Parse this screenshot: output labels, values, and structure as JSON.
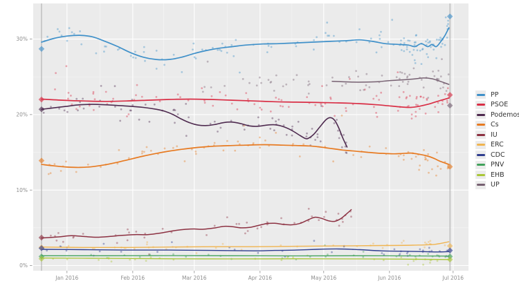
{
  "figure": {
    "background": "#ffffff",
    "panel_background": "#ebebeb",
    "grid_major_color": "#ffffff",
    "grid_minor_color": "rgba(255,255,255,0.55)",
    "axis_text_color": "#8e8e8e",
    "reference_line_color": "#a8a8a8",
    "legend_key_background": "#ececec",
    "legend_text_color": "#333333"
  },
  "chart_data": {
    "type": "scatter+line",
    "title": "",
    "xlabel": "",
    "ylabel": "",
    "x_axis": {
      "epoch_day0": "2015-12-20",
      "ticks": [
        {
          "day": 12,
          "label": "Jan 2016"
        },
        {
          "day": 43,
          "label": "Feb 2016"
        },
        {
          "day": 72,
          "label": "Mar 2016"
        },
        {
          "day": 103,
          "label": "Apr 2016"
        },
        {
          "day": 133,
          "label": "May 2016"
        },
        {
          "day": 164,
          "label": "Jun 2016"
        },
        {
          "day": 194,
          "label": "Jul 2016"
        }
      ],
      "minor_tick_days": [
        27.5,
        57.5,
        87.5,
        118,
        148.5,
        179
      ]
    },
    "y_axis": {
      "tick_values": [
        0,
        10,
        20,
        30
      ],
      "tick_labels": [
        "0%",
        "10%",
        "20%",
        "30%"
      ],
      "minor_tick_values": [
        5,
        15,
        25
      ],
      "range": [
        0,
        34.5
      ]
    },
    "reference_days": [
      0,
      192.5
    ],
    "election_markers": [
      {
        "day": 0,
        "results": [
          {
            "party": "PP",
            "value": 28.7
          },
          {
            "party": "PSOE",
            "value": 22.0
          },
          {
            "party": "Podemos",
            "value": 20.7
          },
          {
            "party": "Cs",
            "value": 13.9
          },
          {
            "party": "IU",
            "value": 3.7
          },
          {
            "party": "ERC",
            "value": 2.4
          },
          {
            "party": "CDC",
            "value": 2.3
          },
          {
            "party": "PNV",
            "value": 1.2
          },
          {
            "party": "EHB",
            "value": 0.9
          }
        ]
      },
      {
        "day": 192.5,
        "results": [
          {
            "party": "PP",
            "value": 33.0
          },
          {
            "party": "PSOE",
            "value": 22.6
          },
          {
            "party": "UP",
            "value": 21.2
          },
          {
            "party": "Cs",
            "value": 13.1
          },
          {
            "party": "ERC",
            "value": 2.6
          },
          {
            "party": "CDC",
            "value": 2.0
          },
          {
            "party": "PNV",
            "value": 1.2
          },
          {
            "party": "EHB",
            "value": 0.8
          }
        ]
      }
    ],
    "series": [
      {
        "name": "PP",
        "color": "#3f90c9",
        "line_width": 1.7,
        "points": [
          [
            0,
            29.6
          ],
          [
            6,
            30.1
          ],
          [
            12,
            30.4
          ],
          [
            18,
            30.5
          ],
          [
            24,
            30.3
          ],
          [
            30,
            29.7
          ],
          [
            36,
            29.0
          ],
          [
            42,
            28.2
          ],
          [
            48,
            27.6
          ],
          [
            54,
            27.3
          ],
          [
            60,
            27.3
          ],
          [
            66,
            27.6
          ],
          [
            72,
            28.1
          ],
          [
            78,
            28.5
          ],
          [
            84,
            28.8
          ],
          [
            90,
            29.0
          ],
          [
            96,
            29.2
          ],
          [
            104,
            29.35
          ],
          [
            112,
            29.4
          ],
          [
            120,
            29.5
          ],
          [
            128,
            29.6
          ],
          [
            136,
            29.7
          ],
          [
            144,
            29.8
          ],
          [
            150,
            29.9
          ],
          [
            156,
            29.7
          ],
          [
            162,
            29.4
          ],
          [
            168,
            29.3
          ],
          [
            173,
            29.2
          ],
          [
            176,
            29.0
          ],
          [
            179,
            29.4
          ],
          [
            182,
            29.0
          ],
          [
            184,
            29.3
          ],
          [
            186,
            29.0
          ],
          [
            188,
            29.6
          ],
          [
            190,
            30.4
          ],
          [
            192,
            31.5
          ]
        ],
        "scatter": {
          "count": 135,
          "sd": 0.85,
          "from": 0,
          "to": 192,
          "end_frac": 0.3
        }
      },
      {
        "name": "PSOE",
        "color": "#d92e45",
        "line_width": 1.7,
        "points": [
          [
            0,
            22.05
          ],
          [
            10,
            21.9
          ],
          [
            20,
            21.8
          ],
          [
            30,
            21.75
          ],
          [
            40,
            21.8
          ],
          [
            50,
            21.9
          ],
          [
            60,
            22.0
          ],
          [
            70,
            22.05
          ],
          [
            80,
            22.0
          ],
          [
            90,
            21.9
          ],
          [
            100,
            21.8
          ],
          [
            110,
            21.7
          ],
          [
            120,
            21.65
          ],
          [
            130,
            21.6
          ],
          [
            140,
            21.55
          ],
          [
            150,
            21.45
          ],
          [
            158,
            21.3
          ],
          [
            164,
            21.15
          ],
          [
            170,
            21.0
          ],
          [
            174,
            20.95
          ],
          [
            178,
            21.1
          ],
          [
            182,
            21.35
          ],
          [
            186,
            21.7
          ],
          [
            189,
            21.95
          ],
          [
            192,
            22.2
          ]
        ],
        "scatter": {
          "count": 110,
          "sd": 0.8,
          "from": 0,
          "to": 192,
          "end_frac": 0.3
        }
      },
      {
        "name": "Podemos",
        "color": "#4e2a4f",
        "line_width": 1.6,
        "points": [
          [
            0,
            20.7
          ],
          [
            6,
            20.9
          ],
          [
            12,
            21.1
          ],
          [
            18,
            21.3
          ],
          [
            24,
            21.35
          ],
          [
            30,
            21.3
          ],
          [
            36,
            21.2
          ],
          [
            42,
            21.1
          ],
          [
            48,
            20.95
          ],
          [
            54,
            20.7
          ],
          [
            58,
            20.45
          ],
          [
            62,
            20.0
          ],
          [
            66,
            19.4
          ],
          [
            70,
            18.9
          ],
          [
            74,
            18.6
          ],
          [
            78,
            18.55
          ],
          [
            82,
            18.7
          ],
          [
            86,
            18.95
          ],
          [
            90,
            19.0
          ],
          [
            94,
            18.8
          ],
          [
            98,
            18.5
          ],
          [
            102,
            18.45
          ],
          [
            106,
            18.6
          ],
          [
            110,
            18.65
          ],
          [
            114,
            18.4
          ],
          [
            118,
            17.9
          ],
          [
            122,
            17.2
          ],
          [
            125,
            16.8
          ],
          [
            128,
            17.3
          ],
          [
            131,
            18.3
          ],
          [
            134,
            19.3
          ],
          [
            136,
            19.6
          ],
          [
            138,
            19.3
          ],
          [
            140,
            18.3
          ],
          [
            142,
            16.9
          ],
          [
            144,
            15.7
          ]
        ],
        "scatter": {
          "count": 80,
          "sd": 0.85,
          "from": 0,
          "to": 144,
          "end_frac": 0.15
        }
      },
      {
        "name": "Cs",
        "color": "#e77a21",
        "line_width": 1.7,
        "points": [
          [
            0,
            13.4
          ],
          [
            6,
            13.2
          ],
          [
            12,
            13.05
          ],
          [
            18,
            13.0
          ],
          [
            24,
            13.1
          ],
          [
            30,
            13.35
          ],
          [
            36,
            13.7
          ],
          [
            42,
            14.1
          ],
          [
            48,
            14.5
          ],
          [
            54,
            14.85
          ],
          [
            60,
            15.15
          ],
          [
            66,
            15.4
          ],
          [
            72,
            15.6
          ],
          [
            78,
            15.75
          ],
          [
            84,
            15.85
          ],
          [
            90,
            15.9
          ],
          [
            96,
            15.95
          ],
          [
            102,
            16.0
          ],
          [
            108,
            16.0
          ],
          [
            114,
            15.95
          ],
          [
            120,
            15.9
          ],
          [
            126,
            15.85
          ],
          [
            130,
            15.75
          ],
          [
            134,
            15.6
          ],
          [
            138,
            15.45
          ],
          [
            142,
            15.3
          ],
          [
            146,
            15.2
          ],
          [
            150,
            15.1
          ],
          [
            154,
            15.0
          ],
          [
            158,
            14.9
          ],
          [
            162,
            14.85
          ],
          [
            166,
            14.8
          ],
          [
            170,
            14.85
          ],
          [
            174,
            14.9
          ],
          [
            178,
            14.75
          ],
          [
            182,
            14.5
          ],
          [
            185,
            14.2
          ],
          [
            188,
            13.8
          ],
          [
            192,
            13.4
          ]
        ],
        "scatter": {
          "count": 85,
          "sd": 0.75,
          "from": 0,
          "to": 192,
          "end_frac": 0.3
        }
      },
      {
        "name": "IU",
        "color": "#8c3041",
        "line_width": 1.5,
        "points": [
          [
            0,
            3.65
          ],
          [
            8,
            3.8
          ],
          [
            14,
            3.95
          ],
          [
            20,
            3.85
          ],
          [
            26,
            3.75
          ],
          [
            32,
            3.85
          ],
          [
            38,
            4.0
          ],
          [
            44,
            4.1
          ],
          [
            50,
            4.1
          ],
          [
            56,
            4.3
          ],
          [
            62,
            4.6
          ],
          [
            68,
            4.8
          ],
          [
            72,
            4.85
          ],
          [
            76,
            4.8
          ],
          [
            82,
            5.0
          ],
          [
            86,
            5.2
          ],
          [
            90,
            5.15
          ],
          [
            94,
            5.0
          ],
          [
            98,
            5.05
          ],
          [
            102,
            5.3
          ],
          [
            106,
            5.55
          ],
          [
            110,
            5.6
          ],
          [
            114,
            5.45
          ],
          [
            118,
            5.4
          ],
          [
            122,
            5.6
          ],
          [
            126,
            6.1
          ],
          [
            129,
            6.4
          ],
          [
            132,
            6.25
          ],
          [
            135,
            5.95
          ],
          [
            138,
            5.85
          ],
          [
            141,
            6.2
          ],
          [
            144,
            6.9
          ],
          [
            146,
            7.4
          ]
        ],
        "scatter": {
          "count": 50,
          "sd": 0.6,
          "from": 0,
          "to": 146,
          "end_frac": 0.15
        }
      },
      {
        "name": "ERC",
        "color": "#f0b44f",
        "line_width": 1.4,
        "points": [
          [
            0,
            2.45
          ],
          [
            20,
            2.4
          ],
          [
            40,
            2.4
          ],
          [
            60,
            2.45
          ],
          [
            80,
            2.5
          ],
          [
            100,
            2.5
          ],
          [
            120,
            2.55
          ],
          [
            140,
            2.6
          ],
          [
            160,
            2.65
          ],
          [
            175,
            2.7
          ],
          [
            185,
            2.8
          ],
          [
            192,
            3.15
          ]
        ],
        "scatter": {
          "count": 38,
          "sd": 0.3,
          "from": 0,
          "to": 192,
          "end_frac": 0.25
        }
      },
      {
        "name": "CDC",
        "color": "#2e3d8f",
        "line_width": 1.4,
        "points": [
          [
            0,
            2.15
          ],
          [
            20,
            2.1
          ],
          [
            40,
            2.05
          ],
          [
            60,
            2.05
          ],
          [
            80,
            2.0
          ],
          [
            100,
            1.95
          ],
          [
            110,
            2.0
          ],
          [
            120,
            2.05
          ],
          [
            130,
            2.15
          ],
          [
            140,
            2.2
          ],
          [
            150,
            2.1
          ],
          [
            160,
            1.95
          ],
          [
            170,
            1.9
          ],
          [
            180,
            1.85
          ],
          [
            186,
            1.8
          ],
          [
            192,
            1.85
          ]
        ],
        "scatter": {
          "count": 38,
          "sd": 0.3,
          "from": 0,
          "to": 192,
          "end_frac": 0.25
        }
      },
      {
        "name": "PNV",
        "color": "#41a25b",
        "line_width": 1.3,
        "points": [
          [
            0,
            1.3
          ],
          [
            30,
            1.3
          ],
          [
            60,
            1.32
          ],
          [
            90,
            1.3
          ],
          [
            120,
            1.28
          ],
          [
            150,
            1.3
          ],
          [
            170,
            1.28
          ],
          [
            192,
            1.25
          ]
        ],
        "scatter": {
          "count": 30,
          "sd": 0.25,
          "from": 0,
          "to": 192,
          "end_frac": 0.25
        }
      },
      {
        "name": "EHB",
        "color": "#a9c636",
        "line_width": 1.3,
        "points": [
          [
            0,
            1.0
          ],
          [
            30,
            0.95
          ],
          [
            60,
            0.9
          ],
          [
            90,
            0.88
          ],
          [
            120,
            0.9
          ],
          [
            150,
            0.88
          ],
          [
            170,
            0.85
          ],
          [
            192,
            0.8
          ]
        ],
        "scatter": {
          "count": 30,
          "sd": 0.25,
          "from": 0,
          "to": 192,
          "end_frac": 0.25
        }
      },
      {
        "name": "UP",
        "color": "#766071",
        "line_width": 1.5,
        "points": [
          [
            137,
            24.4
          ],
          [
            142,
            24.35
          ],
          [
            147,
            24.3
          ],
          [
            152,
            24.3
          ],
          [
            158,
            24.35
          ],
          [
            164,
            24.5
          ],
          [
            170,
            24.6
          ],
          [
            175,
            24.7
          ],
          [
            180,
            24.85
          ],
          [
            184,
            24.75
          ],
          [
            188,
            24.4
          ],
          [
            192,
            24.0
          ]
        ],
        "scatter": {
          "count": 70,
          "sd": 0.8,
          "from": 75,
          "to": 192,
          "end_frac": 0.45
        }
      }
    ],
    "legend_position": "right",
    "legend_labels": [
      "PP",
      "PSOE",
      "Podemos",
      "Cs",
      "IU",
      "ERC",
      "CDC",
      "PNV",
      "EHB",
      "UP"
    ]
  }
}
